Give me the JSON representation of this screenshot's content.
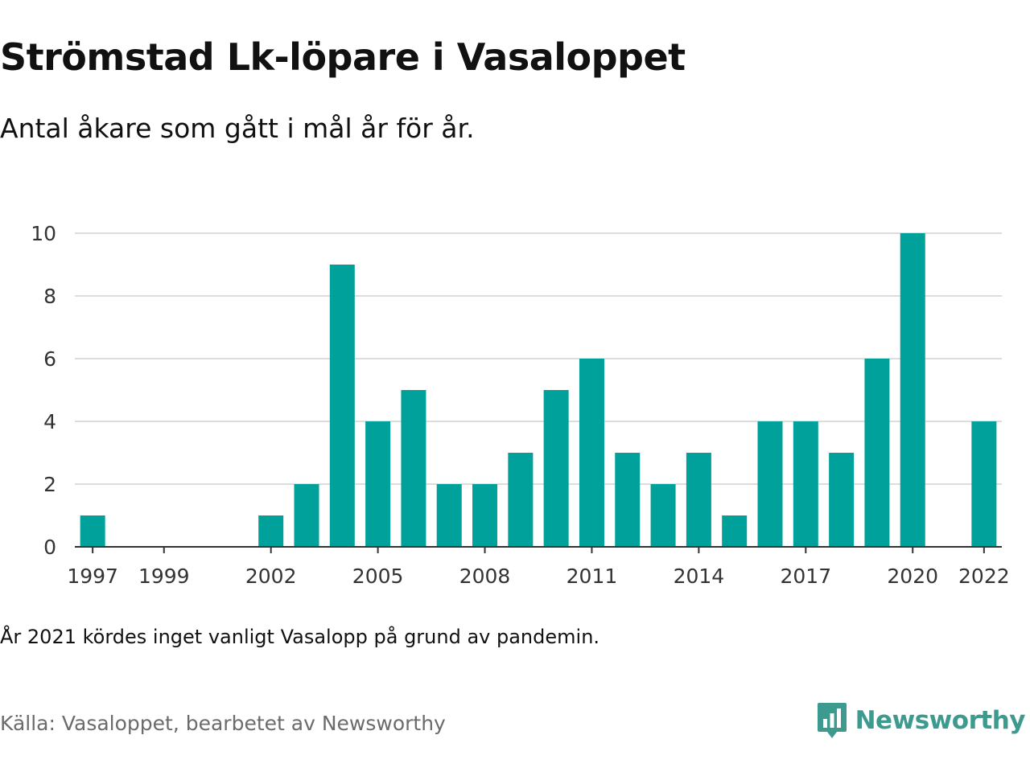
{
  "chart_data": {
    "type": "bar",
    "title": "Strömstad Lk-löpare i Vasaloppet",
    "subtitle": "Antal åkare som gått i mål år för år.",
    "x": [
      1997,
      1998,
      1999,
      2000,
      2001,
      2002,
      2003,
      2004,
      2005,
      2006,
      2007,
      2008,
      2009,
      2010,
      2011,
      2012,
      2013,
      2014,
      2015,
      2016,
      2017,
      2018,
      2019,
      2020,
      2021,
      2022
    ],
    "values": [
      1,
      0,
      0,
      0,
      0,
      1,
      2,
      9,
      4,
      5,
      2,
      2,
      3,
      5,
      6,
      3,
      2,
      3,
      1,
      4,
      4,
      3,
      6,
      10,
      null,
      4
    ],
    "xticks": [
      "1997",
      "1999",
      "2002",
      "2005",
      "2008",
      "2011",
      "2014",
      "2017",
      "2020",
      "2022"
    ],
    "yticks": [
      "0",
      "2",
      "4",
      "6",
      "8",
      "10"
    ],
    "ylim": [
      0,
      10
    ],
    "xlabel": "",
    "ylabel": "",
    "grid": true,
    "bar_color": "#00a19a",
    "grid_color": "#dddddd",
    "axis_color": "#333333"
  },
  "note": "År 2021 kördes inget vanligt Vasalopp på grund av pandemin.",
  "source": "Källa: Vasaloppet, bearbetet av Newsworthy",
  "brand": {
    "name": "Newsworthy",
    "icon": "newsworthy-logo-icon",
    "color": "#3d9a8e"
  }
}
